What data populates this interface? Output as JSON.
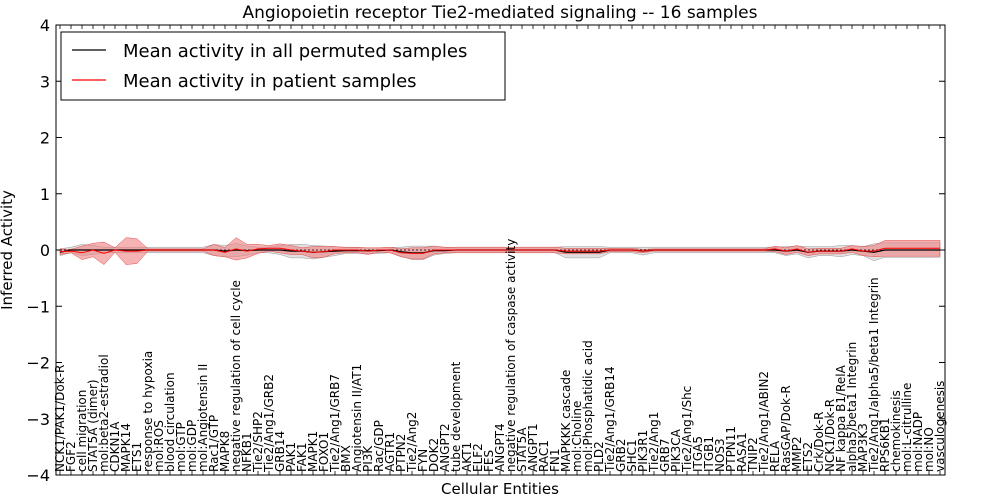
{
  "chart_data": {
    "type": "line",
    "title": "Angiopoietin receptor Tie2-mediated signaling -- 16 samples",
    "xlabel": "Cellular Entities",
    "ylabel": "Inferred Activity",
    "ylim": [
      -4,
      4
    ],
    "yticks": [
      4,
      3,
      2,
      1,
      0,
      -1,
      -2,
      -3,
      -4
    ],
    "ytick_labels": [
      "4",
      "3",
      "2",
      "1",
      "0",
      "−1",
      "−2",
      "−3",
      "−4"
    ],
    "grid": false,
    "legend_position": "top-left",
    "legend": [
      {
        "label": "Mean activity in all permuted samples",
        "color": "#000000"
      },
      {
        "label": "Mean activity in patient samples",
        "color": "#ff0000"
      }
    ],
    "colors": {
      "permuted": "#000000",
      "patient": "#ff0000",
      "patient_band": "#f08080",
      "permuted_band": "#bbbbbb"
    },
    "categories": [
      "NCK1/PAK1/Dok-R",
      "FGF2",
      "cell migration",
      "STAT5A (dimer)",
      "mol:beta2-estradiol",
      "CDKN1A",
      "MAPK14",
      "ETS1",
      "response to hypoxia",
      "mol:ROS",
      "blood circulation",
      "mol:GTP",
      "mol:GDP",
      "mol:Angiotensin II",
      "Rac1/GTP",
      "MAPK8",
      "negative regulation of cell cycle",
      "NFKB1",
      "Tie2/SHP2",
      "Tie2/Ang1/GRB2",
      "GRB14",
      "PAK1",
      "FAK1",
      "MAPK1",
      "FOXO1",
      "Tie2/Ang1/GRB7",
      "BMX",
      "Angiotensin II/AT1",
      "PI3K",
      "Rac/GDP",
      "AGTR1",
      "PTPN2",
      "Tie2/Ang2",
      "FYN",
      "DOK2",
      "ANGPT2",
      "tube development",
      "AKT1",
      "ELF2",
      "FES",
      "ANGPT4",
      "negative regulation of caspase activity",
      "STAT5A",
      "ANGPT1",
      "RAC1",
      "FN1",
      "MAPKKK cascade",
      "mol:Choline",
      "mol:Phosphatidic acid",
      "PLD2",
      "Tie2/Ang1/GRB14",
      "GRB2",
      "SHC1",
      "PIK3R1",
      "Tie2/Ang1",
      "GRB7",
      "PIK3CA",
      "Tie2/Ang1/Shc",
      "ITGA5",
      "ITGB1",
      "NOS3",
      "PTPN11",
      "RASA1",
      "TNIP2",
      "Tie2/Ang1/ABIN2",
      "RELA",
      "RasGAP/Dok-R",
      "MMP2",
      "ETS2",
      "Crk/Dok-R",
      "NCK1/Dok-R",
      "NF kappa B1/RelA",
      "alpha5/beta1 Integrin",
      "MAP3K3",
      "Tie2/Ang1/alpha5/beta1 Integrin",
      "RPS6KB1",
      "chemokinesis",
      "mol:L-citrulline",
      "mol:NADP",
      "mol:NO",
      "vasculogenesis"
    ],
    "series": [
      {
        "name": "Mean activity in all permuted samples",
        "values": [
          -0.04,
          0.0,
          0.0,
          0.0,
          0.0,
          0.0,
          0.0,
          0.0,
          0.0,
          0.0,
          0.0,
          0.0,
          0.0,
          0.0,
          0.0,
          -0.02,
          0.0,
          -0.01,
          0.0,
          0.0,
          0.0,
          -0.02,
          -0.02,
          -0.04,
          -0.03,
          -0.02,
          -0.01,
          -0.01,
          -0.01,
          -0.01,
          0.0,
          -0.03,
          -0.05,
          -0.05,
          -0.01,
          -0.01,
          0.0,
          0.0,
          0.0,
          0.0,
          0.0,
          0.0,
          0.0,
          0.0,
          0.0,
          0.0,
          -0.04,
          -0.04,
          -0.04,
          -0.04,
          0.0,
          0.0,
          0.0,
          -0.02,
          0.0,
          0.0,
          0.0,
          0.0,
          0.0,
          0.0,
          0.0,
          0.0,
          0.0,
          0.0,
          0.0,
          0.0,
          -0.02,
          0.0,
          -0.04,
          -0.02,
          -0.02,
          -0.02,
          0.0,
          -0.02,
          -0.04,
          0.0,
          0.0,
          0.0,
          0.0,
          0.0,
          0.0
        ],
        "band": [
          0.06,
          0.05,
          0.1,
          0.08,
          0.05,
          0.05,
          0.05,
          0.05,
          0.05,
          0.05,
          0.05,
          0.05,
          0.05,
          0.05,
          0.1,
          0.1,
          0.12,
          0.08,
          0.05,
          0.05,
          0.08,
          0.12,
          0.12,
          0.12,
          0.1,
          0.08,
          0.05,
          0.05,
          0.05,
          0.05,
          0.05,
          0.08,
          0.12,
          0.12,
          0.08,
          0.05,
          0.05,
          0.05,
          0.05,
          0.05,
          0.05,
          0.05,
          0.05,
          0.05,
          0.05,
          0.05,
          0.1,
          0.1,
          0.1,
          0.1,
          0.05,
          0.05,
          0.05,
          0.07,
          0.05,
          0.05,
          0.05,
          0.05,
          0.05,
          0.05,
          0.05,
          0.05,
          0.05,
          0.05,
          0.05,
          0.05,
          0.08,
          0.07,
          0.1,
          0.08,
          0.08,
          0.1,
          0.08,
          0.08,
          0.15,
          0.13,
          0.13,
          0.13,
          0.13,
          0.13,
          0.13
        ]
      },
      {
        "name": "Mean activity in patient samples",
        "values": [
          -0.03,
          -0.02,
          -0.05,
          0.0,
          -0.06,
          0.0,
          -0.02,
          -0.02,
          0.0,
          0.0,
          0.0,
          0.0,
          0.0,
          0.0,
          0.0,
          -0.04,
          0.02,
          -0.02,
          0.02,
          0.03,
          0.03,
          0.0,
          -0.02,
          -0.04,
          -0.03,
          0.0,
          0.0,
          0.0,
          -0.02,
          0.0,
          0.0,
          -0.05,
          -0.06,
          -0.06,
          0.0,
          0.0,
          0.0,
          0.0,
          0.0,
          0.0,
          0.0,
          0.0,
          0.0,
          0.0,
          0.0,
          0.0,
          -0.02,
          -0.02,
          -0.02,
          -0.02,
          0.0,
          0.0,
          0.0,
          -0.02,
          0.0,
          0.0,
          0.0,
          0.0,
          0.0,
          0.0,
          0.0,
          0.0,
          0.0,
          0.0,
          0.0,
          0.02,
          -0.02,
          0.02,
          -0.04,
          -0.02,
          -0.02,
          -0.02,
          0.02,
          -0.02,
          -0.02,
          0.03,
          0.03,
          0.03,
          0.03,
          0.03,
          0.03
        ],
        "band": [
          0.05,
          0.03,
          0.12,
          0.12,
          0.2,
          0.04,
          0.24,
          0.22,
          0.02,
          0.02,
          0.02,
          0.02,
          0.02,
          0.02,
          0.1,
          0.08,
          0.2,
          0.12,
          0.08,
          0.05,
          0.08,
          0.08,
          0.06,
          0.1,
          0.1,
          0.06,
          0.05,
          0.05,
          0.06,
          0.04,
          0.05,
          0.07,
          0.1,
          0.1,
          0.07,
          0.05,
          0.05,
          0.05,
          0.05,
          0.05,
          0.05,
          0.05,
          0.05,
          0.05,
          0.05,
          0.05,
          0.05,
          0.05,
          0.05,
          0.05,
          0.03,
          0.03,
          0.03,
          0.03,
          0.02,
          0.02,
          0.02,
          0.02,
          0.02,
          0.02,
          0.02,
          0.02,
          0.02,
          0.02,
          0.02,
          0.05,
          0.06,
          0.06,
          0.06,
          0.05,
          0.05,
          0.05,
          0.06,
          0.08,
          0.1,
          0.14,
          0.14,
          0.14,
          0.14,
          0.14,
          0.14
        ]
      }
    ]
  }
}
